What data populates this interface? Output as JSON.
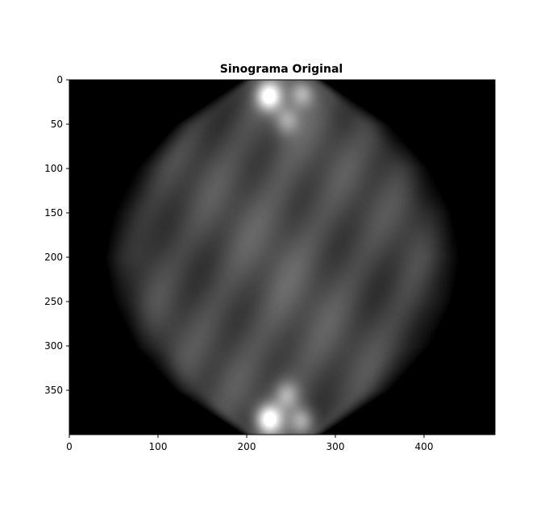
{
  "chart_data": {
    "type": "heatmap",
    "title": "Sinograma Original",
    "xlabel": "",
    "ylabel": "",
    "colormap": "gray",
    "xlim": [
      0,
      480
    ],
    "ylim": [
      400,
      0
    ],
    "x_ticks": [
      0,
      100,
      200,
      300,
      400
    ],
    "y_ticks": [
      0,
      50,
      100,
      150,
      200,
      250,
      300,
      350
    ],
    "grid": false,
    "legend": "none",
    "image_rows": 400,
    "image_cols": 480,
    "intensity_profile": {
      "center_col": 240,
      "envelope_halfwidth_by_row": [
        [
          0,
          45
        ],
        [
          50,
          120
        ],
        [
          100,
          165
        ],
        [
          150,
          190
        ],
        [
          200,
          200
        ],
        [
          250,
          190
        ],
        [
          300,
          165
        ],
        [
          350,
          120
        ],
        [
          399,
          45
        ]
      ],
      "bright_spots": [
        {
          "row": 18,
          "col": 225,
          "level": 1.0
        },
        {
          "row": 15,
          "col": 262,
          "level": 0.55
        },
        {
          "row": 45,
          "col": 245,
          "level": 0.45
        },
        {
          "row": 382,
          "col": 225,
          "level": 1.0
        },
        {
          "row": 385,
          "col": 262,
          "level": 0.55
        },
        {
          "row": 355,
          "col": 245,
          "level": 0.45
        }
      ]
    }
  }
}
